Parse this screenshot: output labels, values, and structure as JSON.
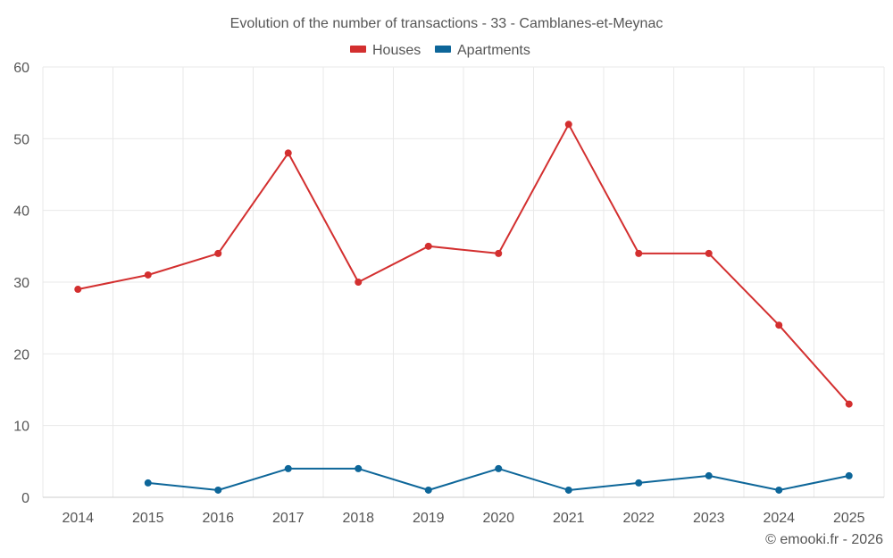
{
  "chart_data": {
    "type": "line",
    "title": "Evolution of the number of transactions - 33 - Camblanes-et-Meynac",
    "categories": [
      "2014",
      "2015",
      "2016",
      "2017",
      "2018",
      "2019",
      "2020",
      "2021",
      "2022",
      "2023",
      "2024",
      "2025"
    ],
    "series": [
      {
        "name": "Houses",
        "color": "#d32f2f",
        "values": [
          29,
          31,
          34,
          48,
          30,
          35,
          34,
          52,
          34,
          34,
          24,
          13
        ]
      },
      {
        "name": "Apartments",
        "color": "#0d6699",
        "values": [
          null,
          2,
          1,
          4,
          4,
          1,
          4,
          1,
          2,
          3,
          1,
          3
        ]
      }
    ],
    "ylim": [
      0,
      60
    ],
    "yticks": [
      0,
      10,
      20,
      30,
      40,
      50,
      60
    ],
    "xlabel": "",
    "ylabel": "",
    "grid": true,
    "legend_position": "top-center"
  },
  "credit": "© emooki.fr - 2026"
}
